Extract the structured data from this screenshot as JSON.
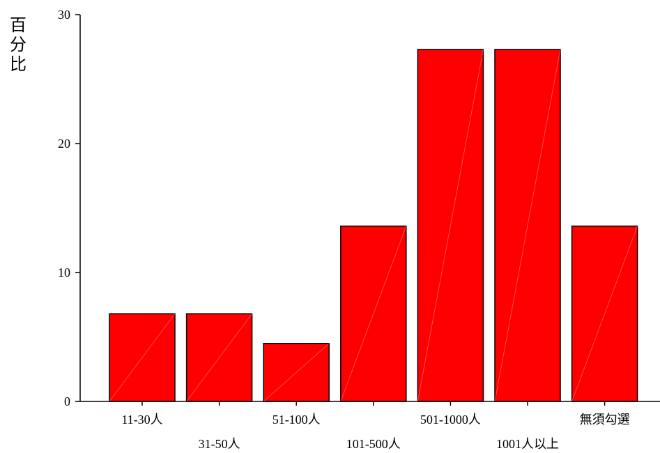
{
  "chart_data": {
    "type": "bar",
    "title": "",
    "xlabel": "",
    "ylabel": "百分比",
    "categories": [
      "11-30人",
      "31-50人",
      "51-100人",
      "101-500人",
      "501-1000人",
      "1001人以上",
      "無須勾選"
    ],
    "values": [
      6.8,
      6.8,
      4.5,
      13.6,
      27.3,
      27.3,
      13.6
    ],
    "ylim": [
      0,
      30
    ],
    "yticks": [
      0,
      10,
      20,
      30
    ],
    "grid": false,
    "legend": "none",
    "bar_color": "#ff0000",
    "bar_edge_color": "#000000"
  }
}
